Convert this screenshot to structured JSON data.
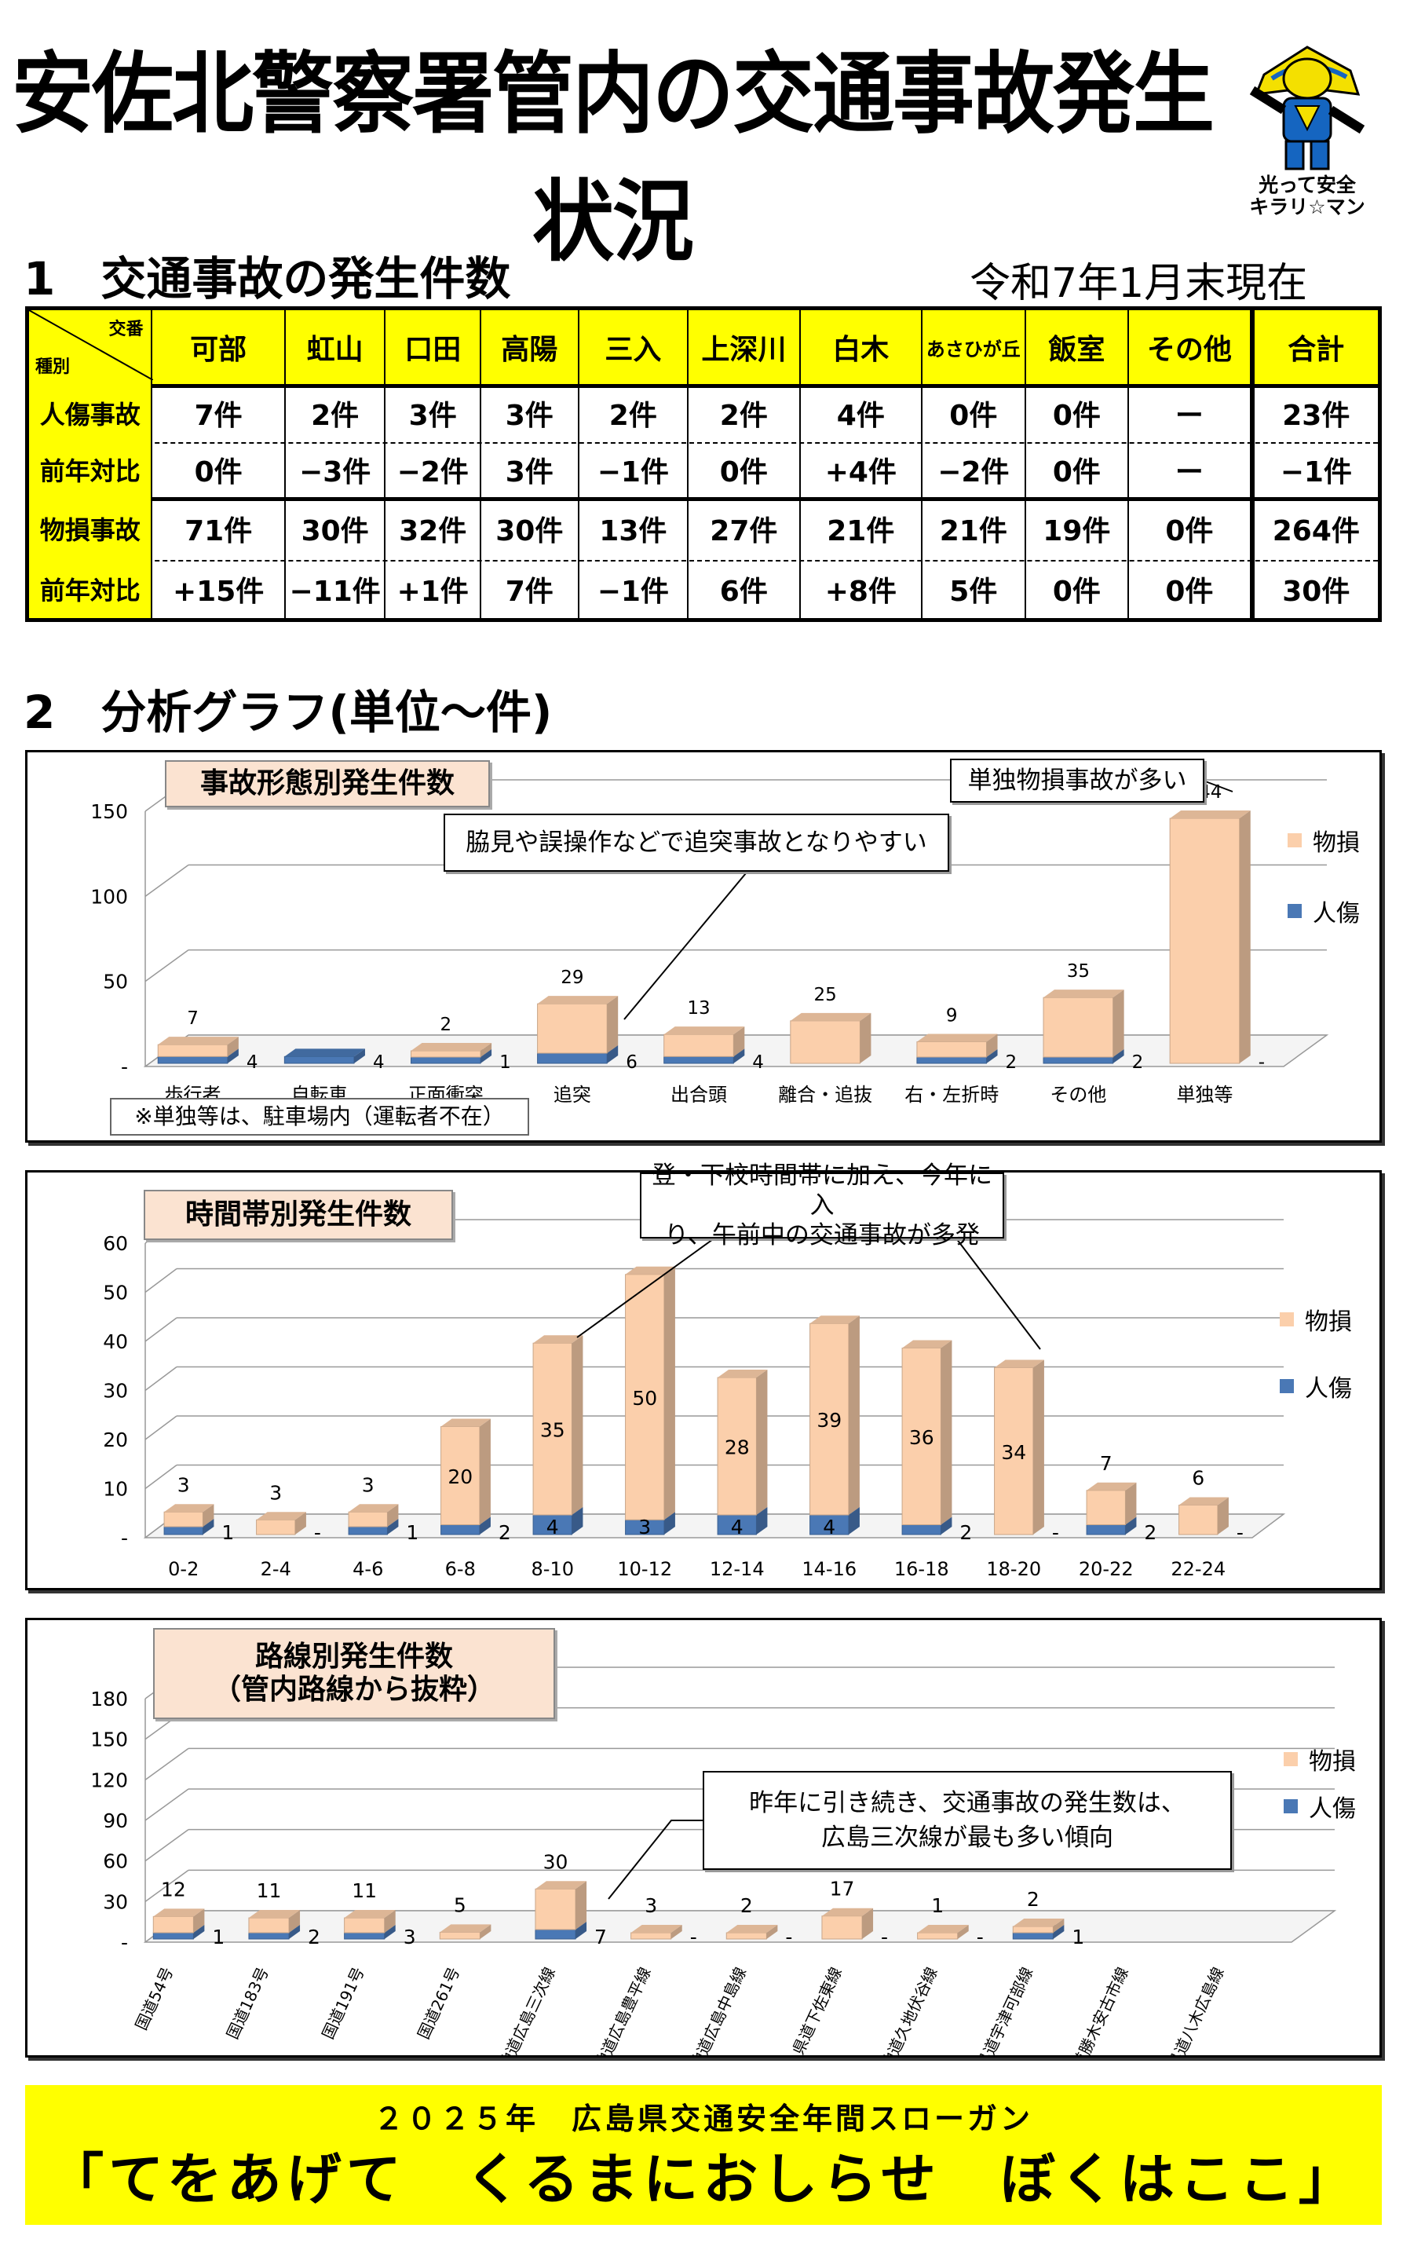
{
  "title": "安佐北警察署管内の交通事故発生状況",
  "mascot": {
    "icon": "kirari-man-mascot",
    "caption_line1": "光って安全",
    "caption_line2": "キラリ☆マン"
  },
  "section1": {
    "title": "1　交通事故の発生件数",
    "date": "令和7年1月末現在"
  },
  "table": {
    "corner_top": "交番",
    "corner_bottom": "種別",
    "columns": [
      "可部",
      "虹山",
      "口田",
      "高陽",
      "三入",
      "上深川",
      "白木",
      "あさひが丘",
      "飯室",
      "その他",
      "合計"
    ],
    "rows": [
      {
        "label": "人傷事故",
        "values": [
          "7件",
          "2件",
          "3件",
          "3件",
          "2件",
          "2件",
          "4件",
          "0件",
          "0件",
          "ー",
          "23件"
        ]
      },
      {
        "label": "前年対比",
        "values": [
          "0件",
          "−3件",
          "−2件",
          "3件",
          "−1件",
          "0件",
          "+4件",
          "−2件",
          "0件",
          "ー",
          "−1件"
        ]
      },
      {
        "label": "物損事故",
        "values": [
          "71件",
          "30件",
          "32件",
          "30件",
          "13件",
          "27件",
          "21件",
          "21件",
          "19件",
          "0件",
          "264件"
        ]
      },
      {
        "label": "前年対比",
        "values": [
          "+15件",
          "−11件",
          "+1件",
          "7件",
          "−1件",
          "6件",
          "+8件",
          "5件",
          "0件",
          "0件",
          "30件"
        ]
      }
    ]
  },
  "section2": {
    "title": "2　分析グラフ(単位～件)"
  },
  "legend": {
    "property": "物損",
    "injury": "人傷",
    "property_color": "#fbcfab",
    "injury_color": "#4a78b5"
  },
  "chart_data": [
    {
      "type": "bar",
      "stacked": true,
      "title": "事故形態別発生件数",
      "categories": [
        "歩行者",
        "自転車",
        "正面衝突",
        "追突",
        "出合頭",
        "離合・追抜",
        "右・左折時",
        "その他",
        "単独等"
      ],
      "series": [
        {
          "name": "人傷",
          "values": [
            4,
            4,
            1,
            6,
            4,
            null,
            2,
            2,
            null
          ],
          "labels": [
            "4",
            "4",
            "1",
            "6",
            "4",
            "",
            "2",
            "2",
            "-"
          ]
        },
        {
          "name": "物損",
          "values": [
            7,
            null,
            2,
            29,
            13,
            25,
            9,
            35,
            144
          ],
          "labels": [
            "7",
            "",
            "2",
            "29",
            "13",
            "25",
            "9",
            "35",
            "144"
          ]
        }
      ],
      "yticks": [
        "-",
        "50",
        "100",
        "150"
      ],
      "ylim": [
        0,
        150
      ],
      "callouts": [
        "脇見や誤操作などで追突事故となりやすい",
        "単独物損事故が多い"
      ],
      "note": "※単独等は、駐車場内（運転者不在）"
    },
    {
      "type": "bar",
      "stacked": true,
      "title": "時間帯別発生件数",
      "categories": [
        "0-2",
        "2-4",
        "4-6",
        "6-8",
        "8-10",
        "10-12",
        "12-14",
        "14-16",
        "16-18",
        "18-20",
        "20-22",
        "22-24"
      ],
      "series": [
        {
          "name": "人傷",
          "values": [
            1,
            null,
            1,
            2,
            4,
            3,
            4,
            4,
            2,
            null,
            2,
            null
          ],
          "labels": [
            "1",
            "-",
            "1",
            "2",
            "4",
            "3",
            "4",
            "4",
            "2",
            "-",
            "2",
            "-"
          ]
        },
        {
          "name": "物損",
          "values": [
            3,
            3,
            3,
            20,
            35,
            50,
            28,
            39,
            36,
            34,
            7,
            6
          ],
          "labels": [
            "3",
            "3",
            "3",
            "20",
            "35",
            "50",
            "28",
            "39",
            "36",
            "34",
            "7",
            "6"
          ]
        }
      ],
      "yticks": [
        "-",
        "10",
        "20",
        "30",
        "40",
        "50",
        "60"
      ],
      "ylim": [
        0,
        60
      ],
      "callouts": [
        "登・下校時間帯に加え、今年に入り、午前中の交通事故が多発"
      ]
    },
    {
      "type": "bar",
      "stacked": true,
      "title": "路線別発生件数（管内路線から抜粋）",
      "categories": [
        "国道54号",
        "国道183号",
        "国道191号",
        "国道261号",
        "主地道広島三次線",
        "主地道広島豊平線",
        "主地道広島中島線",
        "県道下佐東線",
        "主地道久地伏谷線",
        "県道宇津可部線",
        "県道勝木安古市線",
        "県道八木広島線"
      ],
      "series": [
        {
          "name": "人傷",
          "values": [
            1,
            2,
            3,
            null,
            7,
            null,
            null,
            null,
            null,
            1,
            null,
            null
          ],
          "labels": [
            "1",
            "2",
            "3",
            "",
            "7",
            "-",
            "-",
            "-",
            "-",
            "1",
            "",
            ""
          ]
        },
        {
          "name": "物損",
          "values": [
            12,
            11,
            11,
            5,
            30,
            3,
            2,
            17,
            1,
            2,
            null,
            null
          ],
          "labels": [
            "12",
            "11",
            "11",
            "5",
            "30",
            "3",
            "2",
            "17",
            "1",
            "2",
            "",
            ""
          ]
        }
      ],
      "yticks": [
        "-",
        "30",
        "60",
        "90",
        "120",
        "150",
        "180"
      ],
      "ylim": [
        0,
        180
      ],
      "callouts": [
        "昨年に引き続き、交通事故の発生数は、広島三次線が最も多い傾向"
      ]
    }
  ],
  "chart_titles": {
    "c1": "事故形態別発生件数",
    "c2": "時間帯別発生件数",
    "c3_line1": "路線別発生件数",
    "c3_line2": "（管内路線から抜粋）"
  },
  "callout_text": {
    "c1a": "脇見や誤操作などで追突事故となりやすい",
    "c1b": "単独物損事故が多い",
    "c2_line1": "登・下校時間帯に加え、今年に入",
    "c2_line2": "り、午前中の交通事故が多発",
    "c3_line1": "昨年に引き続き、交通事故の発生数は、",
    "c3_line2": "広島三次線が最も多い傾向"
  },
  "note1": "※単独等は、駐車場内（運転者不在）",
  "slogan": {
    "top": "２０２５年　広島県交通安全年間スローガン",
    "main": "「てをあげて　くるまにおしらせ　ぼくはここ」"
  }
}
